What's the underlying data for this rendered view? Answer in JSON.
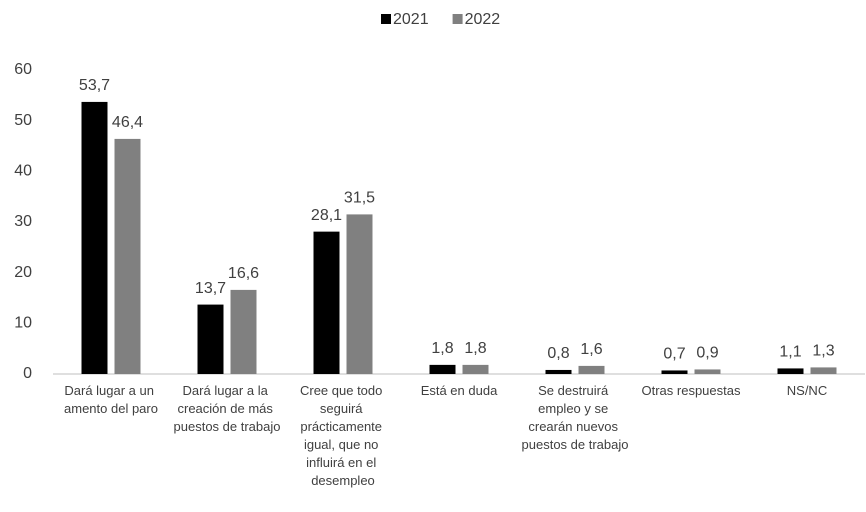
{
  "chart_data": {
    "type": "bar",
    "categories": [
      "Dará lugar a un amento del paro",
      "Dará lugar a la creación de más puestos de trabajo",
      "Cree que todo seguirá prácticamente igual, que no influirá en el desempleo",
      "Está en duda",
      "Se destruirá empleo y se crearán nuevos puestos de trabajo",
      "Otras respuestas",
      "NS/NC"
    ],
    "series": [
      {
        "name": "2021",
        "color": "#000000",
        "values": [
          53.7,
          13.7,
          28.1,
          1.8,
          0.8,
          0.7,
          1.1
        ],
        "value_labels": [
          "53,7",
          "13,7",
          "28,1",
          "1,8",
          "0,8",
          "0,7",
          "1,1"
        ]
      },
      {
        "name": "2022",
        "color": "#808080",
        "values": [
          46.4,
          16.6,
          31.5,
          1.8,
          1.6,
          0.9,
          1.3
        ],
        "value_labels": [
          "46,4",
          "16,6",
          "31,5",
          "1,8",
          "1,6",
          "0,9",
          "1,3"
        ]
      }
    ],
    "ylim": [
      0,
      60
    ],
    "yticks": [
      0,
      10,
      20,
      30,
      40,
      50,
      60
    ],
    "grid": false,
    "legend": "top"
  }
}
